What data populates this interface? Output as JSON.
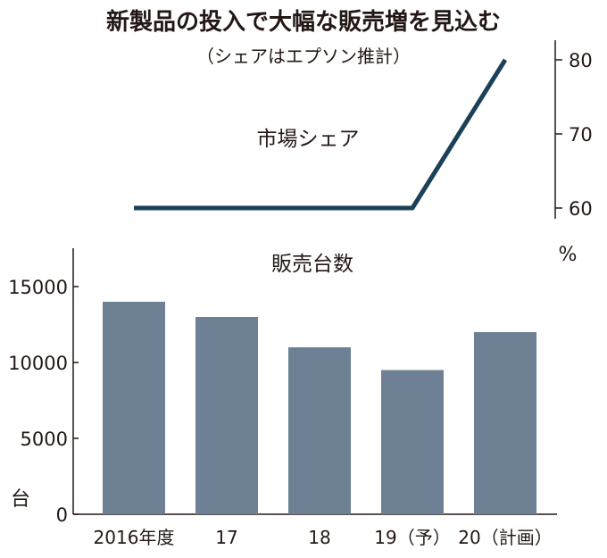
{
  "header": {
    "title": "新製品の投入で大幅な販売増を見込む",
    "subtitle": "（シェアはエプソン推計）"
  },
  "chart_data": [
    {
      "type": "line",
      "title": "市場シェア",
      "x": [
        "2016年度",
        "17",
        "18",
        "19（予）",
        "20（計画）"
      ],
      "series": [
        {
          "values": [
            60,
            60,
            60,
            60,
            80
          ]
        }
      ],
      "yticks": [
        "80",
        "70",
        "60"
      ],
      "ylim": [
        60,
        80
      ],
      "yunit": "%",
      "axis_side": "right",
      "line_color": "#1b4159",
      "grid": false
    },
    {
      "type": "bar",
      "title": "販売台数",
      "categories": [
        "2016年度",
        "17",
        "18",
        "19（予）",
        "20（計画）"
      ],
      "values": [
        14000,
        13000,
        11000,
        9500,
        12000
      ],
      "yticks": [
        "15000",
        "10000",
        "5000",
        "0"
      ],
      "ylim": [
        0,
        15000
      ],
      "yunit": "台",
      "axis_side": "left",
      "bar_color": "#6e8093",
      "grid": false
    }
  ]
}
